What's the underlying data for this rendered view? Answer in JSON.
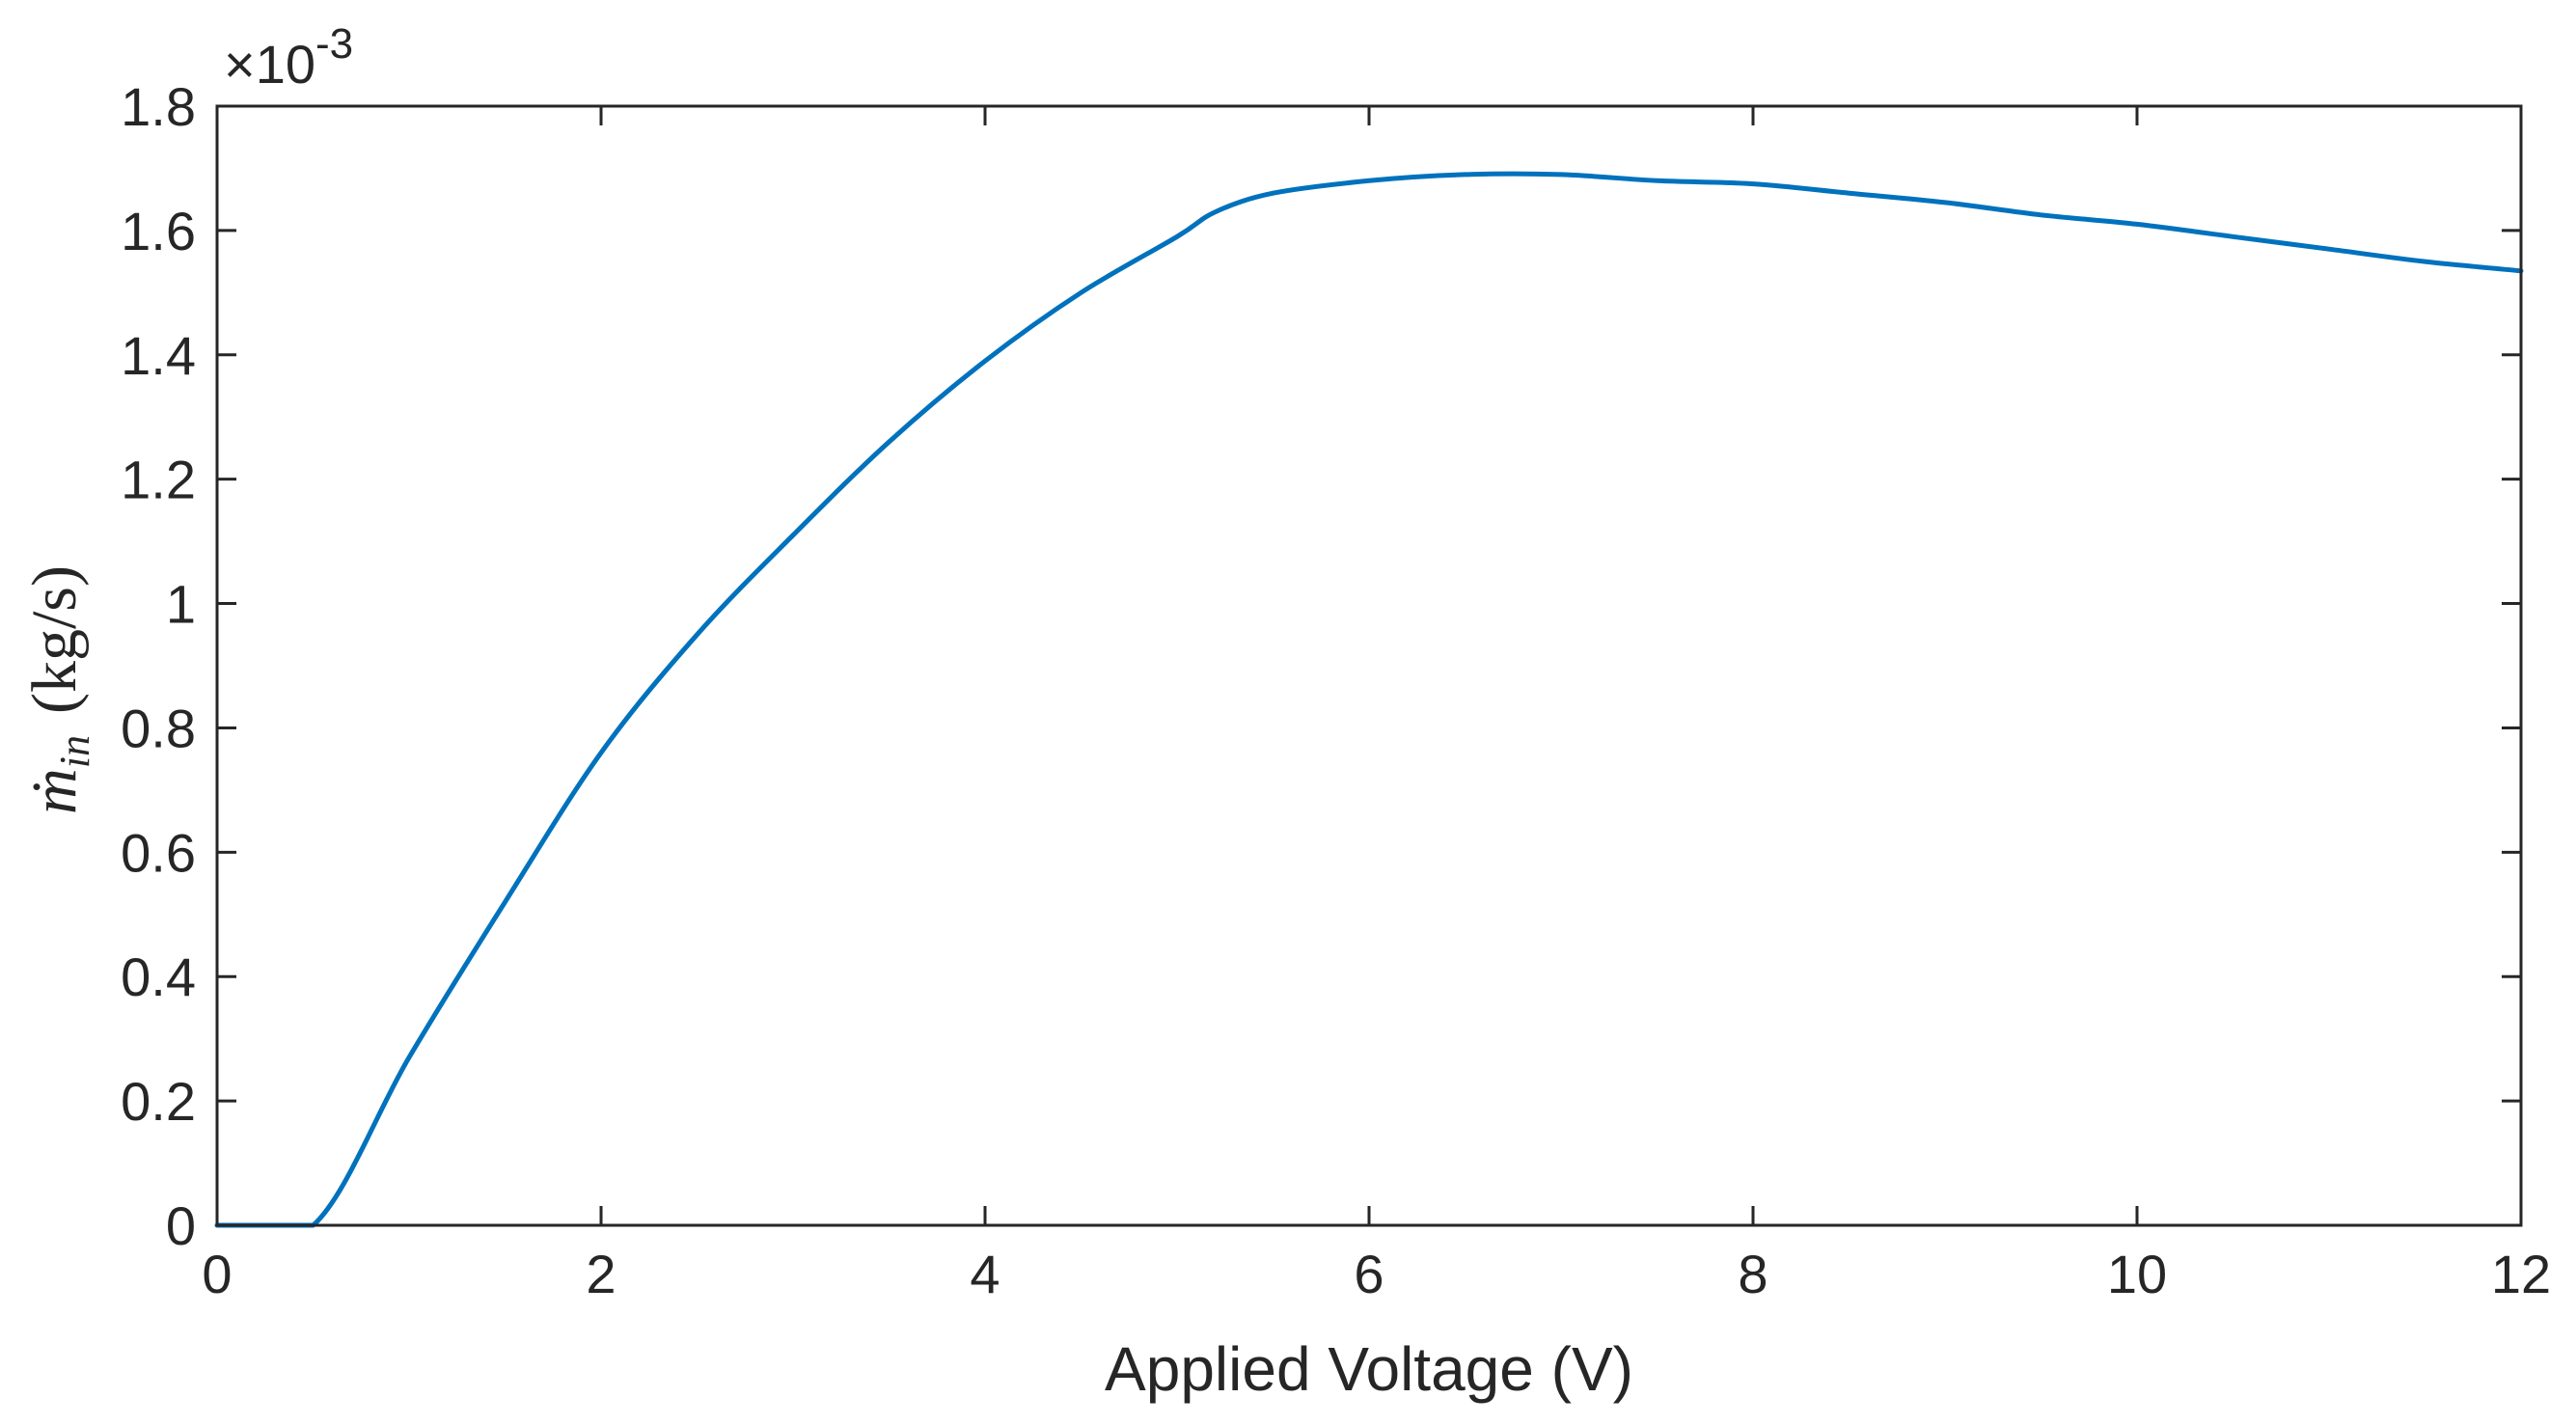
{
  "chart_data": {
    "type": "line",
    "title": "",
    "xlabel": "Applied Voltage (V)",
    "ylabel_symbol": "ṁ",
    "ylabel_subscript": "in",
    "ylabel_unit": "(kg/s)",
    "y_exponent_prefix": "×10",
    "y_exponent_power": "-3",
    "xlim": [
      0,
      12
    ],
    "ylim": [
      0,
      1.8
    ],
    "xticks": [
      0,
      2,
      4,
      6,
      8,
      10,
      12
    ],
    "xtick_labels": [
      "0",
      "2",
      "4",
      "6",
      "8",
      "10",
      "12"
    ],
    "yticks": [
      0,
      0.2,
      0.4,
      0.6,
      0.8,
      1,
      1.2,
      1.4,
      1.6,
      1.8
    ],
    "ytick_labels": [
      "0",
      "0.2",
      "0.4",
      "0.6",
      "0.8",
      "1",
      "1.2",
      "1.4",
      "1.6",
      "1.8"
    ],
    "grid": false,
    "line_color": "#0072bd",
    "series": [
      {
        "x": [
          0,
          0.5,
          1.0,
          1.5,
          2.0,
          2.5,
          3.0,
          3.5,
          4.0,
          4.5,
          5.0,
          5.2,
          5.5,
          6.0,
          6.5,
          7.0,
          7.5,
          8.0,
          8.5,
          9.0,
          9.5,
          10.0,
          10.5,
          11.0,
          11.5,
          12.0
        ],
        "values": [
          0,
          0,
          0.27,
          0.52,
          0.76,
          0.95,
          1.11,
          1.26,
          1.39,
          1.5,
          1.59,
          1.63,
          1.66,
          1.68,
          1.69,
          1.69,
          1.68,
          1.675,
          1.66,
          1.645,
          1.625,
          1.61,
          1.59,
          1.57,
          1.55,
          1.535
        ]
      }
    ]
  }
}
